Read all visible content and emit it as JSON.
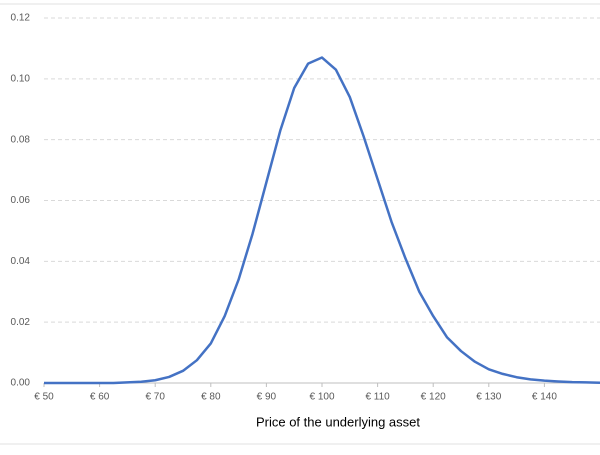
{
  "chart_data": {
    "type": "line",
    "x_label": "Price of the underlying asset",
    "x": [
      50,
      52.5,
      55,
      57.5,
      60,
      62.5,
      65,
      67.5,
      70,
      72.5,
      75,
      77.5,
      80,
      82.5,
      85,
      87.5,
      90,
      92.5,
      95,
      97.5,
      100,
      102.5,
      105,
      107.5,
      110,
      112.5,
      115,
      117.5,
      120,
      122.5,
      125,
      127.5,
      130,
      132.5,
      135,
      137.5,
      140,
      142.5,
      145,
      147.5,
      150
    ],
    "values": [
      0,
      0,
      0,
      0,
      0,
      0,
      0.0002,
      0.0004,
      0.0009,
      0.002,
      0.004,
      0.0075,
      0.013,
      0.022,
      0.034,
      0.049,
      0.066,
      0.083,
      0.097,
      0.105,
      0.107,
      0.103,
      0.094,
      0.081,
      0.067,
      0.053,
      0.041,
      0.03,
      0.022,
      0.015,
      0.0105,
      0.007,
      0.0045,
      0.003,
      0.0019,
      0.0012,
      0.0008,
      0.0005,
      0.0003,
      0.0002,
      0.0001
    ],
    "color": "#4472c4",
    "xlim": [
      50,
      150
    ],
    "xticks": [
      {
        "value": 50,
        "label": "€ 50"
      },
      {
        "value": 60,
        "label": "€ 60"
      },
      {
        "value": 70,
        "label": "€ 70"
      },
      {
        "value": 80,
        "label": "€ 80"
      },
      {
        "value": 90,
        "label": "€ 90"
      },
      {
        "value": 100,
        "label": "€ 100"
      },
      {
        "value": 110,
        "label": "€ 110"
      },
      {
        "value": 120,
        "label": "€ 120"
      },
      {
        "value": 130,
        "label": "€ 130"
      },
      {
        "value": 140,
        "label": "€ 140"
      }
    ],
    "ylim": [
      0,
      0.12
    ],
    "yticks": [
      {
        "value": 0,
        "label": "0.00"
      },
      0.02,
      0.04,
      0.06,
      0.08,
      {
        "value": 0.1,
        "label": "0.10"
      },
      0.12
    ],
    "grid": true
  }
}
